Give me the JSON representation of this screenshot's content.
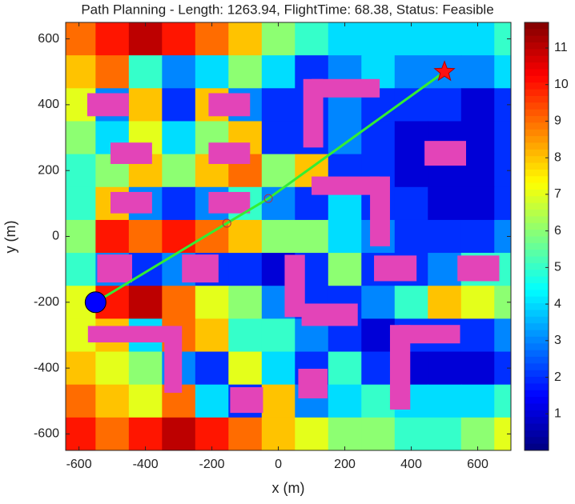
{
  "chart_data": {
    "type": "heatmap",
    "title": "Path Planning - Length: 1263.94, FlightTime: 68.38, Status: Feasible",
    "xlabel": "x (m)",
    "ylabel": "y (m)",
    "xlim": [
      -640,
      700
    ],
    "ylim": [
      -650,
      650
    ],
    "xticks": [
      -600,
      -400,
      -200,
      0,
      200,
      400,
      600
    ],
    "yticks": [
      -600,
      -400,
      -200,
      0,
      200,
      400,
      600
    ],
    "heatmap": {
      "x": [
        -600,
        -500,
        -400,
        -300,
        -200,
        -100,
        0,
        100,
        200,
        300,
        400,
        500,
        600,
        700
      ],
      "y": [
        600,
        500,
        400,
        300,
        200,
        100,
        0,
        -100,
        -200,
        -300,
        -400,
        -500,
        -600
      ],
      "z": [
        [
          9,
          10,
          11,
          10,
          9,
          8,
          6,
          5,
          4,
          4,
          4,
          4,
          4,
          5
        ],
        [
          8,
          9,
          5,
          3,
          4,
          6,
          4,
          2,
          3,
          4,
          3,
          3,
          3,
          4
        ],
        [
          7,
          3,
          8,
          2,
          8,
          3,
          2,
          2,
          3,
          2,
          2,
          2,
          1,
          2
        ],
        [
          6,
          4,
          7,
          4,
          6,
          8,
          2,
          2,
          3,
          2,
          1,
          1,
          1,
          2
        ],
        [
          5,
          6,
          8,
          6,
          8,
          9,
          6,
          8,
          2,
          2,
          1,
          1,
          1,
          2
        ],
        [
          5,
          8,
          3,
          2,
          3,
          5,
          3,
          2,
          4,
          2,
          2,
          1,
          1,
          2
        ],
        [
          6,
          10,
          9,
          10,
          9,
          8,
          6,
          6,
          4,
          3,
          2,
          2,
          2,
          3
        ],
        [
          5,
          3,
          2,
          3,
          2,
          2,
          1,
          2,
          6,
          2,
          2,
          3,
          5,
          5
        ],
        [
          7,
          10,
          11,
          9,
          7,
          6,
          3,
          2,
          2,
          3,
          5,
          8,
          7,
          6
        ],
        [
          7,
          8,
          4,
          9,
          8,
          5,
          5,
          3,
          2,
          1,
          2,
          2,
          2,
          3
        ],
        [
          8,
          7,
          6,
          3,
          2,
          7,
          4,
          2,
          5,
          2,
          1,
          1,
          1,
          2
        ],
        [
          9,
          8,
          7,
          9,
          4,
          2,
          8,
          3,
          4,
          5,
          4,
          4,
          4,
          5
        ],
        [
          10,
          9,
          10,
          11,
          10,
          9,
          8,
          7,
          6,
          6,
          5,
          5,
          6,
          7
        ]
      ]
    },
    "colorbar": {
      "clim": [
        0,
        11.7
      ],
      "ticks": [
        1,
        2,
        3,
        4,
        5,
        6,
        7,
        8,
        9,
        10,
        11
      ]
    },
    "obstacle_color": "#e344b8",
    "obstacles": [
      {
        "x": [
          -575,
          -450
        ],
        "y": [
          365,
          435
        ]
      },
      {
        "x": [
          -210,
          -85
        ],
        "y": [
          365,
          435
        ]
      },
      {
        "x": [
          -505,
          -380
        ],
        "y": [
          220,
          285
        ]
      },
      {
        "x": [
          -210,
          -85
        ],
        "y": [
          220,
          285
        ]
      },
      {
        "x": [
          -505,
          -380
        ],
        "y": [
          70,
          135
        ]
      },
      {
        "x": [
          -210,
          -85
        ],
        "y": [
          70,
          135
        ]
      },
      {
        "x": [
          -545,
          -440
        ],
        "y": [
          -140,
          -55
        ]
      },
      {
        "x": [
          -290,
          -180
        ],
        "y": [
          -140,
          -55
        ]
      },
      {
        "x": [
          100,
          305
        ],
        "y": [
          422,
          478
        ]
      },
      {
        "x": [
          75,
          135
        ],
        "y": [
          270,
          478
        ]
      },
      {
        "x": [
          440,
          565
        ],
        "y": [
          215,
          290
        ]
      },
      {
        "x": [
          100,
          305
        ],
        "y": [
          126,
          182
        ]
      },
      {
        "x": [
          276,
          336
        ],
        "y": [
          -30,
          182
        ]
      },
      {
        "x": [
          288,
          416
        ],
        "y": [
          -136,
          -58
        ]
      },
      {
        "x": [
          539,
          665
        ],
        "y": [
          -136,
          -58
        ]
      },
      {
        "x": [
          19,
          80
        ],
        "y": [
          -245,
          -56
        ]
      },
      {
        "x": [
          70,
          239
        ],
        "y": [
          -272,
          -204
        ]
      },
      {
        "x": [
          -573,
          -314
        ],
        "y": [
          -322,
          -272
        ]
      },
      {
        "x": [
          -343,
          -290
        ],
        "y": [
          -475,
          -272
        ]
      },
      {
        "x": [
          -145,
          -46
        ],
        "y": [
          -536,
          -458
        ]
      },
      {
        "x": [
          60,
          148
        ],
        "y": [
          -492,
          -402
        ]
      },
      {
        "x": [
          363,
          547
        ],
        "y": [
          -325,
          -269
        ]
      },
      {
        "x": [
          336,
          397
        ],
        "y": [
          -526,
          -269
        ]
      }
    ],
    "path": {
      "x": [
        -550,
        -155,
        -30,
        500
      ],
      "y": [
        -200,
        40,
        115,
        500
      ],
      "color": "#33ee33"
    },
    "start": {
      "x": -550,
      "y": -200,
      "color": "#0000ff"
    },
    "goal": {
      "x": 500,
      "y": 500,
      "color": "#ff1111"
    }
  }
}
